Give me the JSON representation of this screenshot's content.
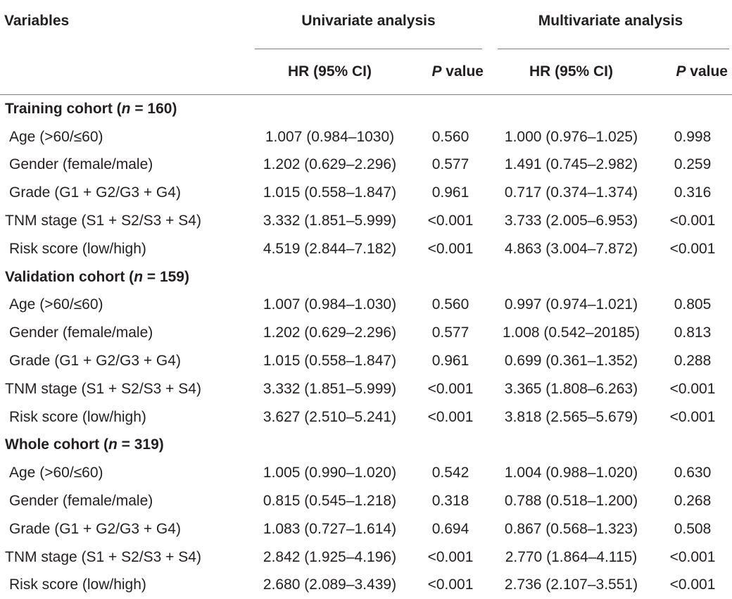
{
  "header": {
    "variables": "Variables",
    "univariate": "Univariate analysis",
    "multivariate": "Multivariate analysis",
    "hr": "HR (95% CI)",
    "p_italic": "P",
    "p_rest": " value"
  },
  "sections": [
    {
      "title_pre": "Training cohort (",
      "title_n": "n",
      "title_post": " = 160)",
      "rows": [
        {
          "label": "Age (>60/≤60)",
          "uni_hr": "1.007 (0.984–1030)",
          "uni_p": "0.560",
          "multi_hr": "1.000 (0.976–1.025)",
          "multi_p": "0.998"
        },
        {
          "label": "Gender (female/male)",
          "uni_hr": "1.202 (0.629–2.296)",
          "uni_p": "0.577",
          "multi_hr": "1.491 (0.745–2.982)",
          "multi_p": "0.259"
        },
        {
          "label": "Grade (G1 + G2/G3 + G4)",
          "uni_hr": "1.015 (0.558–1.847)",
          "uni_p": "0.961",
          "multi_hr": "0.717 (0.374–1.374)",
          "multi_p": "0.316"
        },
        {
          "label": "TNM stage (S1 + S2/S3 + S4)",
          "uni_hr": "3.332 (1.851–5.999)",
          "uni_p": "<0.001",
          "multi_hr": "3.733 (2.005–6.953)",
          "multi_p": "<0.001"
        },
        {
          "label": "Risk score (low/high)",
          "uni_hr": "4.519 (2.844–7.182)",
          "uni_p": "<0.001",
          "multi_hr": "4.863 (3.004–7.872)",
          "multi_p": "<0.001"
        }
      ]
    },
    {
      "title_pre": "Validation cohort (",
      "title_n": "n",
      "title_post": " = 159)",
      "rows": [
        {
          "label": "Age (>60/≤60)",
          "uni_hr": "1.007 (0.984–1.030)",
          "uni_p": "0.560",
          "multi_hr": "0.997 (0.974–1.021)",
          "multi_p": "0.805"
        },
        {
          "label": "Gender (female/male)",
          "uni_hr": "1.202 (0.629–2.296)",
          "uni_p": "0.577",
          "multi_hr": "1.008 (0.542–20185)",
          "multi_p": "0.813"
        },
        {
          "label": "Grade (G1 + G2/G3 + G4)",
          "uni_hr": "1.015 (0.558–1.847)",
          "uni_p": "0.961",
          "multi_hr": "0.699 (0.361–1.352)",
          "multi_p": "0.288"
        },
        {
          "label": "TNM stage (S1 + S2/S3 + S4)",
          "uni_hr": "3.332 (1.851–5.999)",
          "uni_p": "<0.001",
          "multi_hr": "3.365 (1.808–6.263)",
          "multi_p": "<0.001"
        },
        {
          "label": "Risk score (low/high)",
          "uni_hr": "3.627 (2.510–5.241)",
          "uni_p": "<0.001",
          "multi_hr": "3.818 (2.565–5.679)",
          "multi_p": "<0.001"
        }
      ]
    },
    {
      "title_pre": "Whole cohort (",
      "title_n": "n",
      "title_post": " = 319)",
      "rows": [
        {
          "label": "Age (>60/≤60)",
          "uni_hr": "1.005 (0.990–1.020)",
          "uni_p": "0.542",
          "multi_hr": "1.004 (0.988–1.020)",
          "multi_p": "0.630"
        },
        {
          "label": "Gender (female/male)",
          "uni_hr": "0.815 (0.545–1.218)",
          "uni_p": "0.318",
          "multi_hr": "0.788 (0.518–1.200)",
          "multi_p": "0.268"
        },
        {
          "label": "Grade (G1 + G2/G3 + G4)",
          "uni_hr": "1.083 (0.727–1.614)",
          "uni_p": "0.694",
          "multi_hr": "0.867 (0.568–1.323)",
          "multi_p": "0.508"
        },
        {
          "label": "TNM stage (S1 + S2/S3 + S4)",
          "uni_hr": "2.842 (1.925–4.196)",
          "uni_p": "<0.001",
          "multi_hr": "2.770 (1.864–4.115)",
          "multi_p": "<0.001"
        },
        {
          "label": "Risk score (low/high)",
          "uni_hr": "2.680 (2.089–3.439)",
          "uni_p": "<0.001",
          "multi_hr": "2.736 (2.107–3.551)",
          "multi_p": "<0.001"
        }
      ]
    }
  ]
}
